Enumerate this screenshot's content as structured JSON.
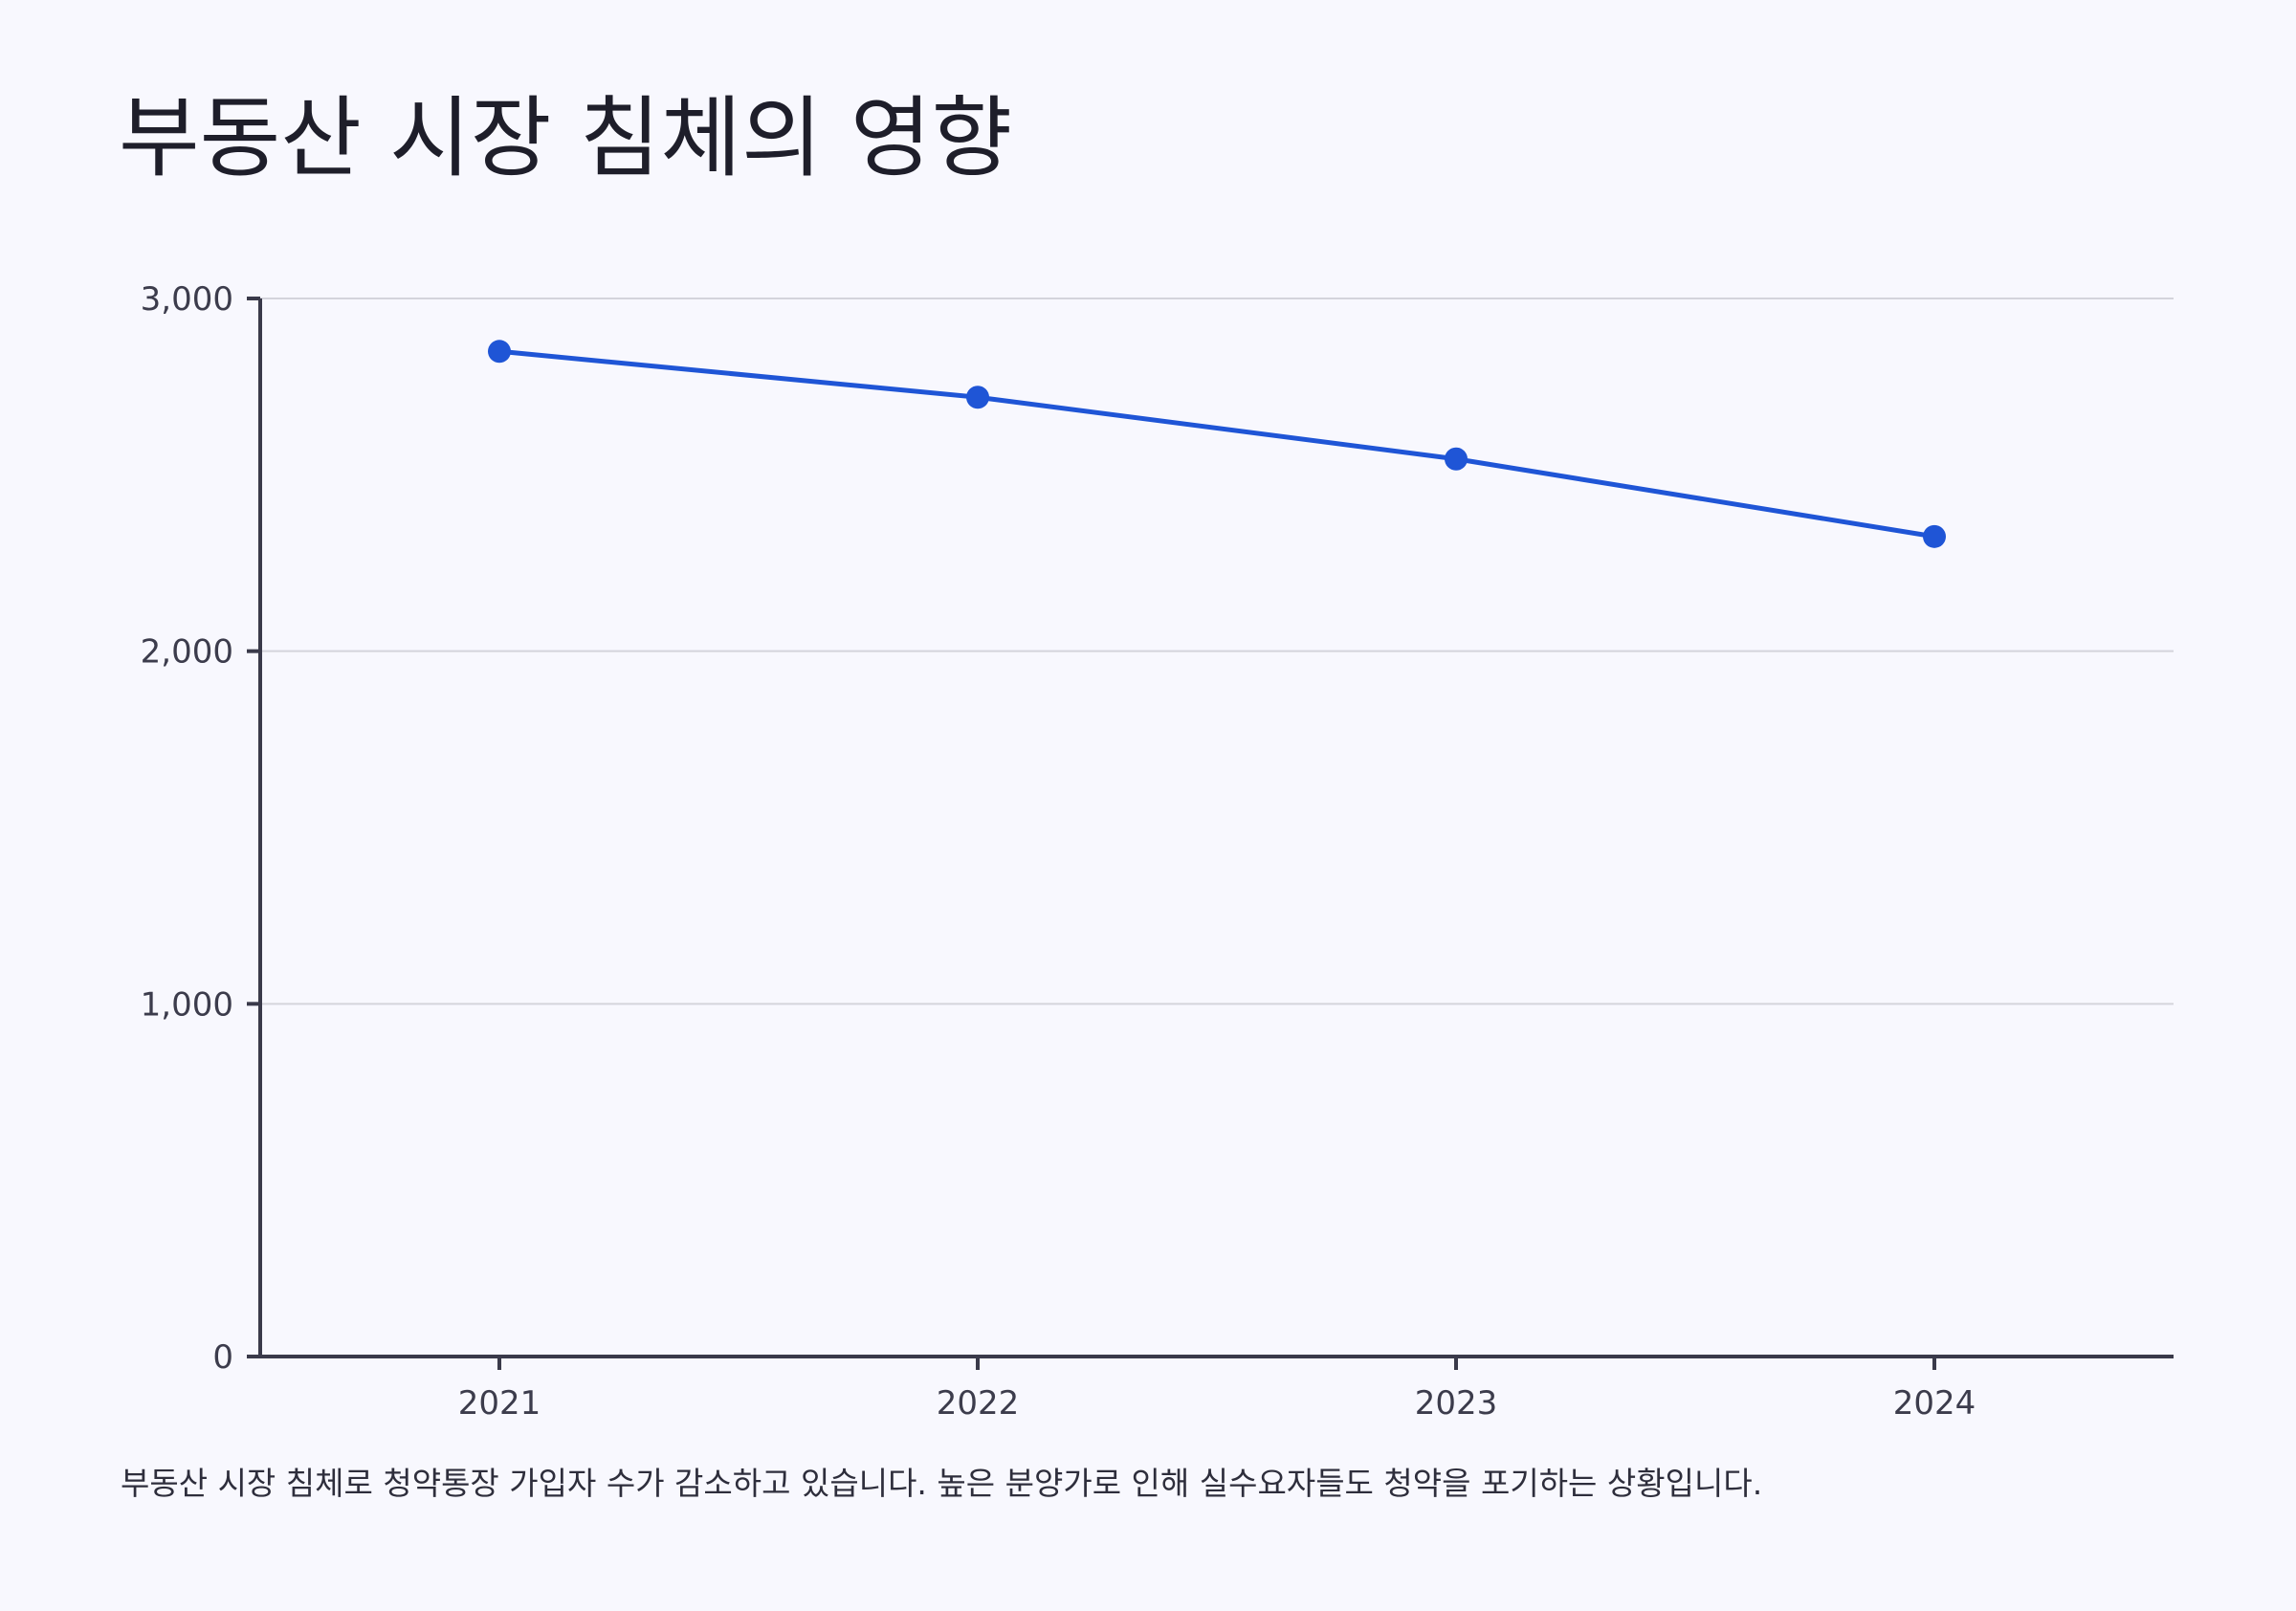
{
  "page": {
    "title": "부동산 시장 침체의 영향",
    "caption": "부동산 시장 침체로 청약통장 가입자 수가 감소하고 있습니다. 높은 분양가로 인해 실수요자들도 청약을 포기하는 상황입니다."
  },
  "chart_data": {
    "type": "line",
    "title": "",
    "xlabel": "",
    "ylabel": "",
    "categories": [
      "2021",
      "2022",
      "2023",
      "2024"
    ],
    "series": [
      {
        "values": [
          2850,
          2720,
          2545,
          2325
        ]
      }
    ],
    "ylim": [
      0,
      3000
    ],
    "yticks": [
      0,
      1000,
      2000,
      3000
    ],
    "ytick_labels": [
      "0",
      "1,000",
      "2,000",
      "3,000"
    ],
    "grid": "horizontal",
    "legend": "none",
    "colors": {
      "line": "#1f55d6",
      "axis": "#3a3a4a",
      "grid": "#d4d4dc",
      "background": "#f8f8fe"
    }
  }
}
